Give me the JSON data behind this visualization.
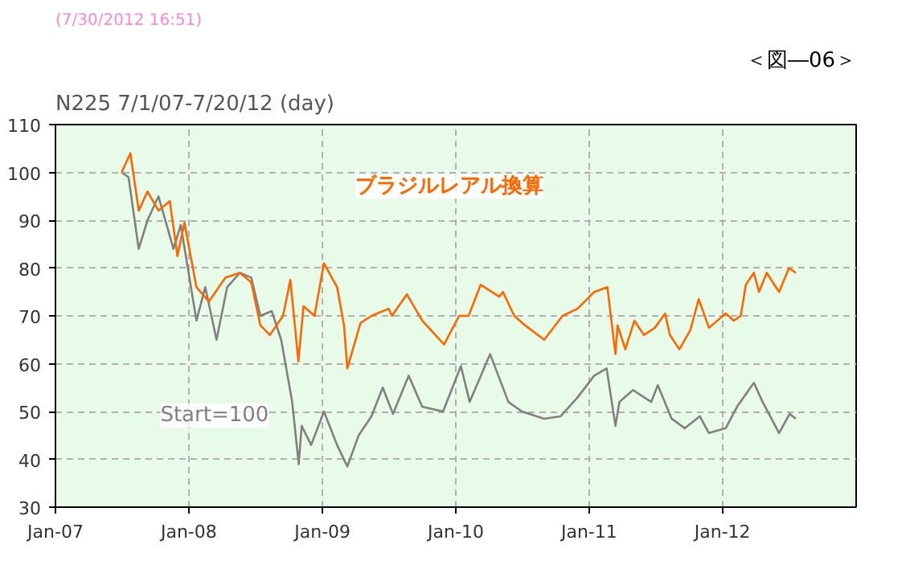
{
  "chart_data": {
    "type": "line",
    "title": "N225 7/1/07-7/20/12 (day)",
    "annotations": [
      "(7/30/2012 16:51)",
      "＜図―06＞",
      "Start=100"
    ],
    "xlim": [
      "2007-01-01",
      "2013-01-01"
    ],
    "xticks": [
      {
        "value": "2007-01-01",
        "label": "Jan-07"
      },
      {
        "value": "2008-01-01",
        "label": "Jan-08"
      },
      {
        "value": "2009-01-01",
        "label": "Jan-09"
      },
      {
        "value": "2010-01-01",
        "label": "Jan-10"
      },
      {
        "value": "2011-01-01",
        "label": "Jan-11"
      },
      {
        "value": "2012-01-01",
        "label": "Jan-12"
      }
    ],
    "ylim": [
      30,
      110
    ],
    "yticks": [
      30,
      40,
      50,
      60,
      70,
      80,
      90,
      100,
      110
    ],
    "grid": true,
    "line_style": "solid",
    "marker": "none",
    "series": [
      {
        "color": "#808080",
        "x": [
          "2007-07-01",
          "2007-07-20",
          "2007-08-17",
          "2007-09-10",
          "2007-10-10",
          "2007-11-20",
          "2007-12-10",
          "2008-01-22",
          "2008-02-15",
          "2008-03-17",
          "2008-04-15",
          "2008-05-20",
          "2008-06-20",
          "2008-07-15",
          "2008-08-15",
          "2008-09-10",
          "2008-10-10",
          "2008-10-28",
          "2008-11-05",
          "2008-12-01",
          "2009-01-05",
          "2009-02-10",
          "2009-03-10",
          "2009-04-10",
          "2009-05-15",
          "2009-06-15",
          "2009-07-13",
          "2009-08-25",
          "2009-10-01",
          "2009-11-27",
          "2010-01-15",
          "2010-02-08",
          "2010-04-05",
          "2010-05-25",
          "2010-07-01",
          "2010-08-31",
          "2010-10-15",
          "2010-12-01",
          "2011-01-15",
          "2011-02-18",
          "2011-03-14",
          "2011-03-25",
          "2011-05-01",
          "2011-06-20",
          "2011-07-08",
          "2011-08-15",
          "2011-09-20",
          "2011-10-31",
          "2011-11-25",
          "2012-01-10",
          "2012-02-10",
          "2012-03-27",
          "2012-04-20",
          "2012-06-04",
          "2012-07-03",
          "2012-07-20"
        ],
        "values": [
          100,
          99,
          84,
          90,
          95,
          84,
          89,
          69,
          76,
          65,
          76,
          79,
          78,
          70,
          71,
          65,
          52,
          39,
          47,
          43,
          50,
          43,
          38.5,
          45,
          49,
          55,
          49.5,
          57.5,
          51,
          50,
          59.5,
          52,
          62,
          52,
          50,
          48.5,
          49,
          53,
          57.5,
          59,
          47,
          52,
          54.5,
          52,
          55.5,
          48.5,
          46.5,
          49,
          45.5,
          46.5,
          51,
          56,
          52,
          45.5,
          49.5,
          48.5
        ]
      },
      {
        "name": "ブラジルレアル換算",
        "color": "#ff6600",
        "x": [
          "2007-07-01",
          "2007-07-25",
          "2007-08-17",
          "2007-09-10",
          "2007-10-10",
          "2007-11-10",
          "2007-12-01",
          "2007-12-20",
          "2008-01-22",
          "2008-02-25",
          "2008-04-10",
          "2008-05-20",
          "2008-06-20",
          "2008-07-15",
          "2008-08-10",
          "2008-09-15",
          "2008-10-05",
          "2008-10-27",
          "2008-11-10",
          "2008-12-10",
          "2009-01-05",
          "2009-02-10",
          "2009-03-01",
          "2009-03-10",
          "2009-04-15",
          "2009-05-15",
          "2009-07-01",
          "2009-07-10",
          "2009-08-20",
          "2009-10-01",
          "2009-11-30",
          "2010-01-10",
          "2010-02-05",
          "2010-03-10",
          "2010-04-30",
          "2010-05-10",
          "2010-06-10",
          "2010-07-10",
          "2010-08-31",
          "2010-10-20",
          "2010-11-30",
          "2011-01-15",
          "2011-02-20",
          "2011-03-14",
          "2011-03-20",
          "2011-04-10",
          "2011-05-05",
          "2011-05-31",
          "2011-06-30",
          "2011-07-28",
          "2011-08-10",
          "2011-09-05",
          "2011-10-05",
          "2011-10-28",
          "2011-11-25",
          "2012-01-10",
          "2012-02-01",
          "2012-02-20",
          "2012-03-05",
          "2012-03-27",
          "2012-04-10",
          "2012-05-01",
          "2012-06-04",
          "2012-07-01",
          "2012-07-20"
        ],
        "values": [
          100,
          104,
          92,
          96,
          92,
          94,
          82.5,
          89.5,
          76,
          73,
          78,
          79,
          77,
          68,
          66,
          70,
          77.5,
          60.5,
          72,
          70,
          81,
          76,
          68,
          59,
          68.5,
          70,
          71.5,
          70,
          74.5,
          69,
          64,
          70,
          70,
          76.5,
          74,
          75,
          70,
          68,
          65,
          70,
          71.5,
          75,
          76,
          62,
          68,
          63,
          69,
          66,
          67.5,
          70.5,
          66,
          63,
          67,
          73.5,
          67.5,
          70.5,
          69,
          70,
          76.5,
          79,
          75,
          79,
          75,
          80,
          79
        ]
      }
    ]
  }
}
